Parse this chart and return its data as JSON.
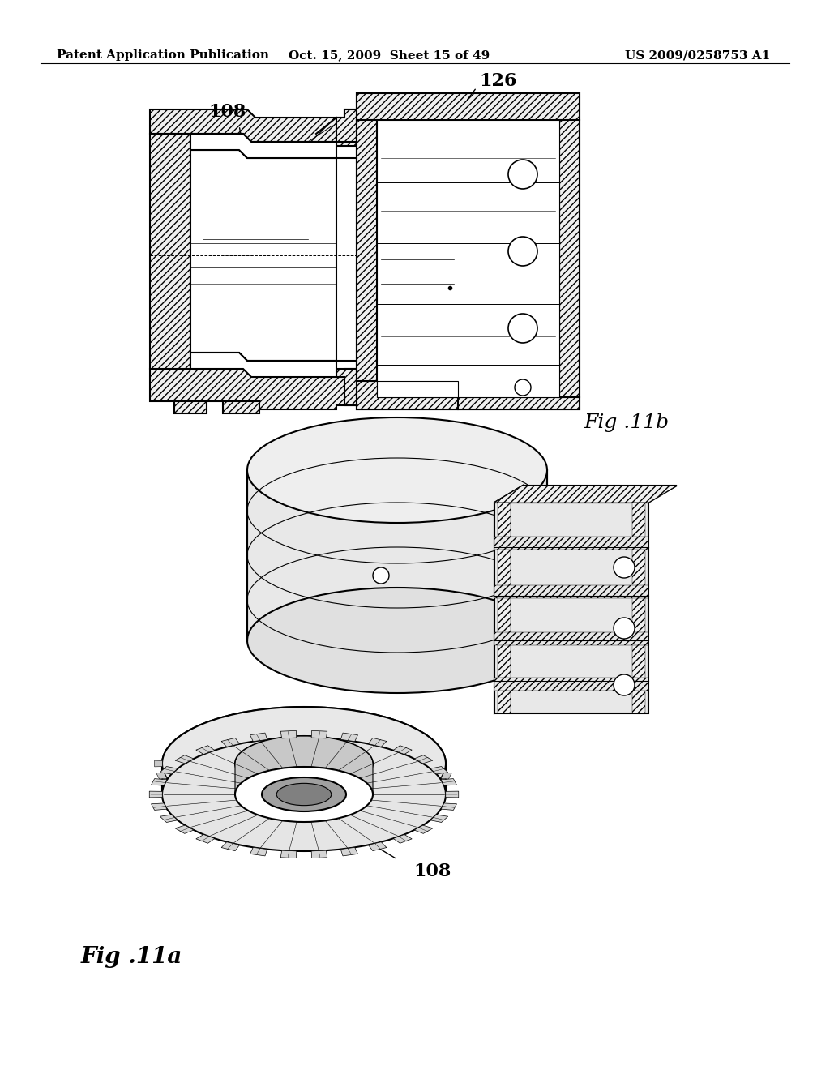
{
  "background_color": "#ffffff",
  "header_left": "Patent Application Publication",
  "header_center": "Oct. 15, 2009  Sheet 15 of 49",
  "header_right": "US 2009/0258753 A1",
  "header_fontsize": 11,
  "fig_label_fontsize": 16,
  "annotation_fontsize": 14,
  "fig11b_label": "Fig .11b",
  "fig11a_label": "Fig .11a",
  "label_108": "108",
  "label_126": "126"
}
